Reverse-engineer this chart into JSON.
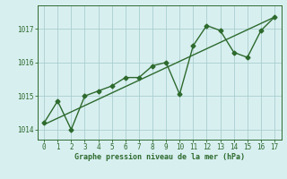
{
  "x": [
    0,
    1,
    2,
    3,
    4,
    5,
    6,
    7,
    8,
    9,
    10,
    11,
    12,
    13,
    14,
    15,
    16,
    17
  ],
  "y": [
    1014.2,
    1014.85,
    1014.0,
    1015.0,
    1015.15,
    1015.3,
    1015.55,
    1015.55,
    1015.9,
    1016.0,
    1015.05,
    1016.5,
    1017.1,
    1016.95,
    1016.3,
    1016.15,
    1016.95,
    1017.35
  ],
  "trend_x": [
    0,
    17
  ],
  "trend_y": [
    1014.15,
    1017.35
  ],
  "line_color": "#2d6a2d",
  "bg_color": "#d8eff0",
  "grid_color": "#aacece",
  "axis_color": "#2d6a2d",
  "tick_color": "#2d6a2d",
  "xlabel": "Graphe pression niveau de la mer (hPa)",
  "xlim": [
    -0.5,
    17.5
  ],
  "ylim": [
    1013.7,
    1017.7
  ],
  "yticks": [
    1014,
    1015,
    1016,
    1017
  ],
  "xticks": [
    0,
    1,
    2,
    3,
    4,
    5,
    6,
    7,
    8,
    9,
    10,
    11,
    12,
    13,
    14,
    15,
    16,
    17
  ],
  "marker": "D",
  "marker_size": 2.5,
  "line_width": 1.0
}
